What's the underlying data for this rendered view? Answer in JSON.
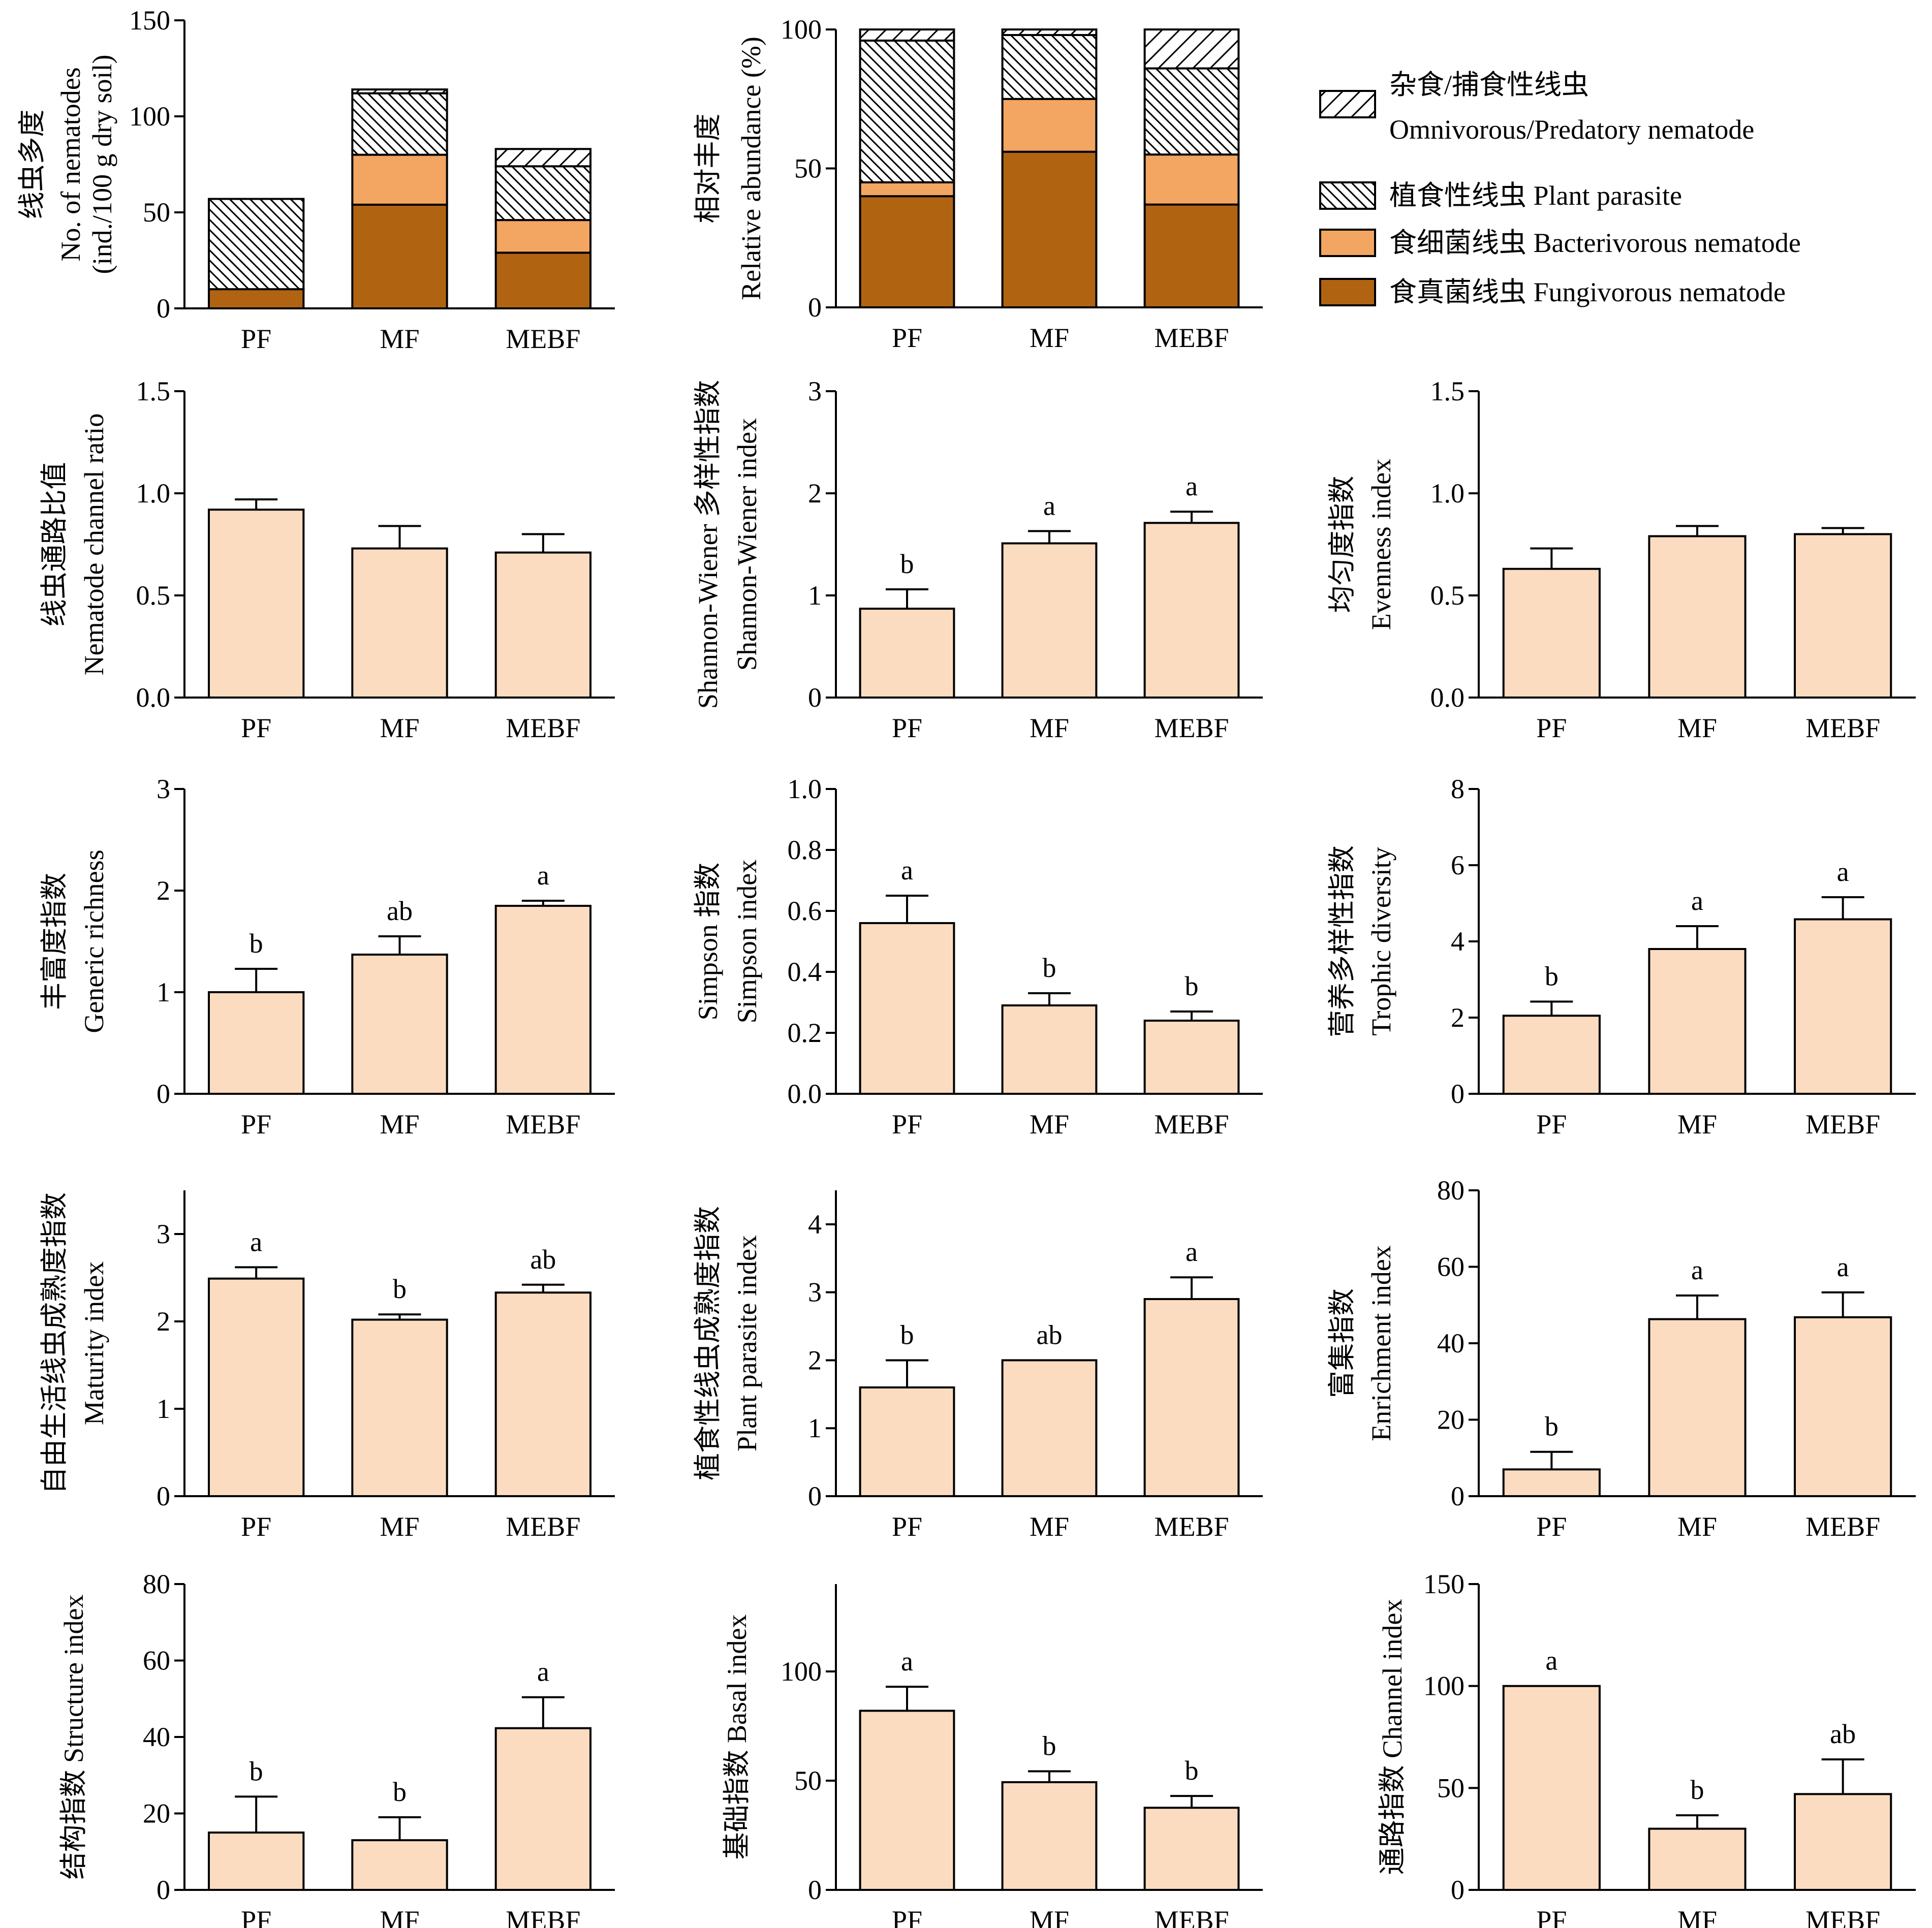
{
  "colors": {
    "fungivorous": "#B06412",
    "bacterivorous": "#F3A562",
    "bar": "#FBDCC0",
    "outline": "#000000",
    "hatch_line": "#000000"
  },
  "chart_data": [
    {
      "id": "nematode-number",
      "type": "bar",
      "stacked": true,
      "categories": [
        "PF",
        "MF",
        "MEBF"
      ],
      "ylabel_cn": "线虫多度",
      "ylabel_en": "No. of nematodes",
      "ylabel_unit": "(ind./100 g dry soil)",
      "ylim": [
        0,
        150
      ],
      "yticks": [
        "0",
        "50",
        "100",
        "150"
      ],
      "series": [
        {
          "key": "fungivorous",
          "fill": "fungivorous",
          "values": [
            10,
            54,
            29
          ]
        },
        {
          "key": "bacterivorous",
          "fill": "bacterivorous",
          "values": [
            0,
            26,
            17
          ]
        },
        {
          "key": "plant_parasite",
          "fill": "hatch-back",
          "values": [
            47,
            32,
            28
          ]
        },
        {
          "key": "omnivorous",
          "fill": "hatch-fwd",
          "values": [
            0,
            2,
            9
          ]
        }
      ]
    },
    {
      "id": "relative-abundance",
      "type": "bar",
      "stacked": true,
      "categories": [
        "PF",
        "MF",
        "MEBF"
      ],
      "ylabel_cn": "相对丰度",
      "ylabel_en": "Relative abundance (%)",
      "ylim": [
        0,
        100
      ],
      "yticks": [
        "0",
        "50",
        "100"
      ],
      "series": [
        {
          "key": "fungivorous",
          "fill": "fungivorous",
          "values": [
            40,
            56,
            37
          ]
        },
        {
          "key": "bacterivorous",
          "fill": "bacterivorous",
          "values": [
            5,
            19,
            18
          ]
        },
        {
          "key": "plant_parasite",
          "fill": "hatch-back",
          "values": [
            51,
            23,
            31
          ]
        },
        {
          "key": "omnivorous",
          "fill": "hatch-fwd",
          "values": [
            4,
            2,
            14
          ]
        }
      ],
      "legend": [
        {
          "fill": "hatch-fwd",
          "label_cn": "杂食/捕食性线虫",
          "label_en": "Omnivorous/Predatory nematode"
        },
        {
          "fill": "hatch-back",
          "label_cn": "植食性线虫",
          "label_en": "Plant parasite"
        },
        {
          "fill": "bacterivorous",
          "label_cn": "食细菌线虫",
          "label_en": "Bacterivorous nematode"
        },
        {
          "fill": "fungivorous",
          "label_cn": "食真菌线虫",
          "label_en": "Fungivorous nematode"
        }
      ],
      "legend_position": "right"
    },
    {
      "id": "channel-ratio",
      "type": "bar",
      "categories": [
        "PF",
        "MF",
        "MEBF"
      ],
      "ylabel_cn": "线虫通路比值",
      "ylabel_en": "Nematode channel ratio",
      "ylim": [
        0,
        1.5
      ],
      "yticks": [
        "0.0",
        "0.5",
        "1.0",
        "1.5"
      ],
      "values": [
        0.92,
        0.73,
        0.71
      ],
      "errors": [
        0.05,
        0.11,
        0.09
      ],
      "letters": [
        "",
        "",
        ""
      ]
    },
    {
      "id": "shannon",
      "type": "bar",
      "categories": [
        "PF",
        "MF",
        "MEBF"
      ],
      "ylabel_cn": "Shannon-Wiener 多样性指数",
      "ylabel_en": "Shannon-Wiener index",
      "ylim": [
        0,
        3
      ],
      "yticks": [
        "0",
        "1",
        "2",
        "3"
      ],
      "values": [
        0.87,
        1.51,
        1.71
      ],
      "errors": [
        0.19,
        0.12,
        0.11
      ],
      "letters": [
        "b",
        "a",
        "a"
      ]
    },
    {
      "id": "evenness",
      "type": "bar",
      "categories": [
        "PF",
        "MF",
        "MEBF"
      ],
      "ylabel_cn": "均匀度指数",
      "ylabel_en": "Evenness index",
      "ylim": [
        0,
        1.5
      ],
      "yticks": [
        "0.0",
        "0.5",
        "1.0",
        "1.5"
      ],
      "values": [
        0.63,
        0.79,
        0.8
      ],
      "errors": [
        0.1,
        0.05,
        0.03
      ],
      "letters": [
        "",
        "",
        ""
      ]
    },
    {
      "id": "generic-richness",
      "type": "bar",
      "categories": [
        "PF",
        "MF",
        "MEBF"
      ],
      "ylabel_cn": "丰富度指数",
      "ylabel_en": "Generic richness",
      "ylim": [
        0,
        3
      ],
      "yticks": [
        "0",
        "1",
        "2",
        "3"
      ],
      "values": [
        1.0,
        1.37,
        1.85
      ],
      "errors": [
        0.23,
        0.18,
        0.05
      ],
      "letters": [
        "b",
        "ab",
        "a"
      ]
    },
    {
      "id": "simpson",
      "type": "bar",
      "categories": [
        "PF",
        "MF",
        "MEBF"
      ],
      "ylabel_cn": "Simpson 指数",
      "ylabel_en": "Simpson index",
      "ylim": [
        0,
        1.0
      ],
      "yticks": [
        "0.0",
        "0.2",
        "0.4",
        "0.6",
        "0.8",
        "1.0"
      ],
      "values": [
        0.56,
        0.29,
        0.24
      ],
      "errors": [
        0.09,
        0.04,
        0.03
      ],
      "letters": [
        "a",
        "b",
        "b"
      ]
    },
    {
      "id": "trophic-diversity",
      "type": "bar",
      "categories": [
        "PF",
        "MF",
        "MEBF"
      ],
      "ylabel_cn": "营养多样性指数",
      "ylabel_en": "Trophic diversity",
      "ylim": [
        0,
        8
      ],
      "yticks": [
        "0",
        "2",
        "4",
        "6",
        "8"
      ],
      "values": [
        2.05,
        3.8,
        4.58
      ],
      "errors": [
        0.37,
        0.6,
        0.58
      ],
      "letters": [
        "b",
        "a",
        "a"
      ]
    },
    {
      "id": "maturity",
      "type": "bar",
      "categories": [
        "PF",
        "MF",
        "MEBF"
      ],
      "ylabel_cn": "自由生活线虫成熟度指数",
      "ylabel_en": "Maturity index",
      "ylim": [
        0,
        3.5
      ],
      "yticks": [
        "0",
        "1",
        "2",
        "3"
      ],
      "values": [
        2.49,
        2.02,
        2.33
      ],
      "errors": [
        0.13,
        0.06,
        0.09
      ],
      "letters": [
        "a",
        "b",
        "ab"
      ]
    },
    {
      "id": "plant-parasite-index",
      "type": "bar",
      "categories": [
        "PF",
        "MF",
        "MEBF"
      ],
      "ylabel_cn": "植食性线虫成熟度指数",
      "ylabel_en": "Plant parasite index",
      "ylim": [
        0,
        4.5
      ],
      "yticks": [
        "0",
        "1",
        "2",
        "3",
        "4"
      ],
      "values": [
        1.6,
        2.0,
        2.9
      ],
      "errors": [
        0.4,
        0.0,
        0.32
      ],
      "letters": [
        "b",
        "ab",
        "a"
      ]
    },
    {
      "id": "enrichment",
      "type": "bar",
      "categories": [
        "PF",
        "MF",
        "MEBF"
      ],
      "ylabel_cn": "富集指数",
      "ylabel_en": "Enrichment index",
      "ylim": [
        0,
        80
      ],
      "yticks": [
        "0",
        "20",
        "40",
        "60",
        "80"
      ],
      "values": [
        7.0,
        46.3,
        46.8
      ],
      "errors": [
        4.6,
        6.2,
        6.5
      ],
      "letters": [
        "b",
        "a",
        "a"
      ]
    },
    {
      "id": "structure",
      "type": "bar",
      "categories": [
        "PF",
        "MF",
        "MEBF"
      ],
      "ylabel_cn": "结构指数",
      "ylabel_en": "Structure index",
      "ylim": [
        0,
        80
      ],
      "yticks": [
        "0",
        "20",
        "40",
        "60",
        "80"
      ],
      "values": [
        15.0,
        13.0,
        42.3
      ],
      "errors": [
        9.4,
        6.0,
        8.1
      ],
      "letters": [
        "b",
        "b",
        "a"
      ]
    },
    {
      "id": "basal",
      "type": "bar",
      "categories": [
        "PF",
        "MF",
        "MEBF"
      ],
      "ylabel_cn": "基础指数",
      "ylabel_en": "Basal index",
      "ylim": [
        0,
        140
      ],
      "yticks": [
        "0",
        "50",
        "100"
      ],
      "values": [
        82.0,
        49.3,
        37.6
      ],
      "errors": [
        11.0,
        5.0,
        5.4
      ],
      "letters": [
        "a",
        "b",
        "b"
      ]
    },
    {
      "id": "channel-index",
      "type": "bar",
      "categories": [
        "PF",
        "MF",
        "MEBF"
      ],
      "ylabel_cn": "通路指数",
      "ylabel_en": "Channel index",
      "ylim": [
        0,
        150
      ],
      "yticks": [
        "0",
        "50",
        "100",
        "150"
      ],
      "values": [
        100.0,
        30.0,
        47.0
      ],
      "errors": [
        0.0,
        6.6,
        17.0
      ],
      "letters": [
        "a",
        "b",
        "ab"
      ]
    }
  ]
}
